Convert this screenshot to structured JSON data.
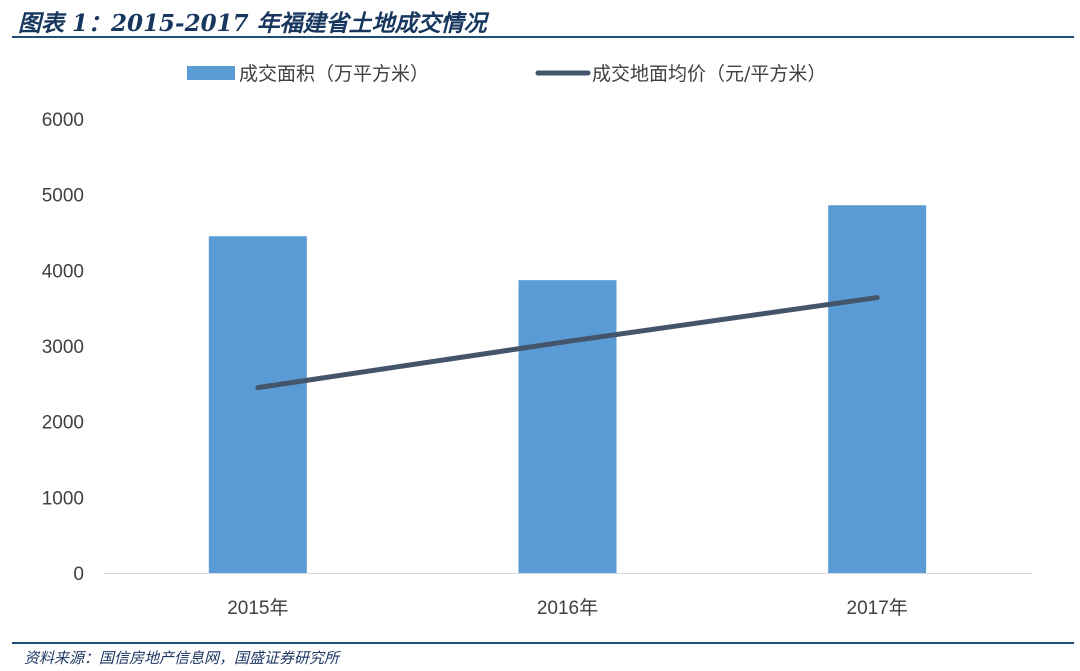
{
  "figure": {
    "title": "图表 1：2015-2017 年福建省土地成交情况",
    "source": "资料来源：国信房地产信息网，国盛证券研究所"
  },
  "chart_data": {
    "type": "bar",
    "categories": [
      "2015年",
      "2016年",
      "2017年"
    ],
    "series": [
      {
        "name": "成交面积（万平方米）",
        "type": "bar",
        "color": "#5b9bd5",
        "values": [
          4450,
          3870,
          4860
        ]
      },
      {
        "name": "成交地面均价（元/平方米）",
        "type": "line",
        "color": "#44546a",
        "values": [
          2450,
          3060,
          3640
        ]
      }
    ],
    "title": "",
    "xlabel": "",
    "ylabel": "",
    "ylim": [
      0,
      6000
    ],
    "yticks": [
      0,
      1000,
      2000,
      3000,
      4000,
      5000,
      6000
    ],
    "grid": false,
    "legend": "top"
  }
}
